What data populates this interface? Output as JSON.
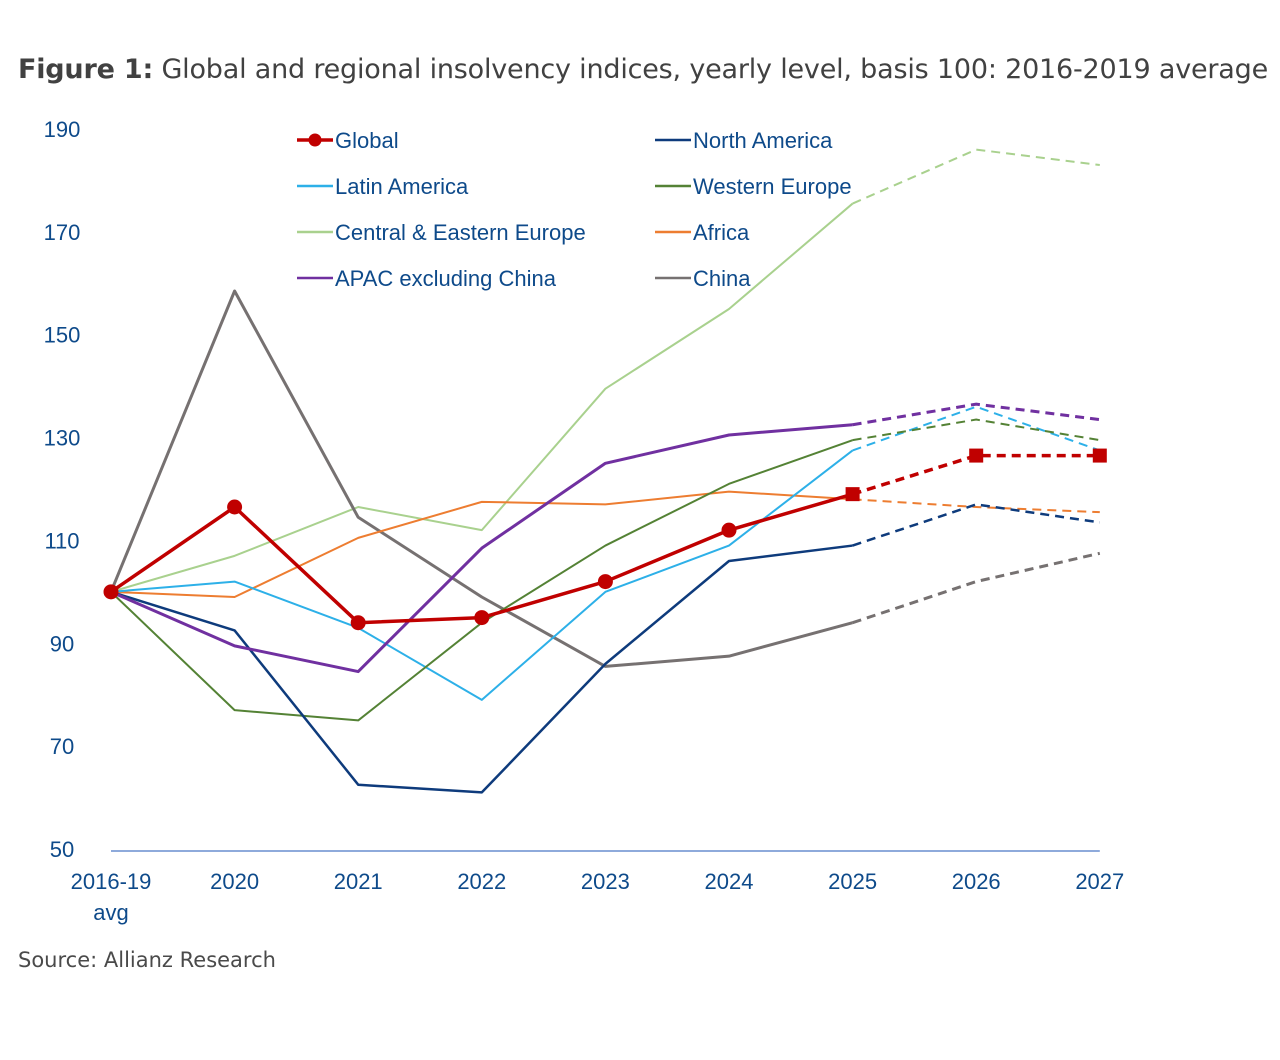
{
  "figure": {
    "label": "Figure 1:",
    "title": "Global and regional insolvency indices, yearly level, basis 100: 2016-2019 average",
    "source": "Source: Allianz Research"
  },
  "chart_data": {
    "type": "line",
    "title": "Global and regional insolvency indices, yearly level, basis 100: 2016-2019 average",
    "xlabel": "",
    "ylabel": "",
    "categories": [
      [
        "2016-19",
        "avg"
      ],
      [
        "2020"
      ],
      [
        "2021"
      ],
      [
        "2022"
      ],
      [
        "2023"
      ],
      [
        "2024"
      ],
      [
        "2025"
      ],
      [
        "2026"
      ],
      [
        "2027"
      ]
    ],
    "ylim": [
      50,
      190
    ],
    "yticks": [
      50,
      70,
      90,
      110,
      130,
      150,
      170,
      190
    ],
    "grid": false,
    "forecast_from_index": 6,
    "legend_position": "top",
    "series": [
      {
        "name": "Global",
        "color": "#c00000",
        "marker": "circle",
        "forecast_marker": "square",
        "width": 3.5,
        "values": [
          100,
          116.5,
          94,
          95,
          102,
          112,
          119,
          126.5,
          126.5
        ]
      },
      {
        "name": "North America",
        "color": "#0e3b7c",
        "width": 2.5,
        "values": [
          100,
          92.5,
          62.5,
          61,
          86,
          106,
          109,
          117,
          113.5
        ]
      },
      {
        "name": "Latin America",
        "color": "#2db0e8",
        "width": 2,
        "values": [
          100,
          102,
          93,
          79,
          100,
          109,
          127.5,
          136,
          127.5
        ]
      },
      {
        "name": "Western Europe",
        "color": "#548235",
        "width": 2,
        "values": [
          100,
          77,
          75,
          94,
          109,
          121,
          129.5,
          133.5,
          129.5
        ]
      },
      {
        "name": "Central & Eastern Europe",
        "color": "#a9d18e",
        "width": 2,
        "values": [
          100,
          107,
          116.5,
          112,
          139.5,
          155,
          175.5,
          186,
          183
        ]
      },
      {
        "name": "Africa",
        "color": "#ed7d31",
        "width": 2,
        "values": [
          100,
          99,
          110.5,
          117.5,
          117,
          119.5,
          118,
          116.5,
          115.5
        ]
      },
      {
        "name": "APAC excluding China",
        "color": "#7030a0",
        "width": 3,
        "values": [
          100,
          89.5,
          84.5,
          108.5,
          125,
          130.5,
          132.5,
          136.5,
          133.5
        ]
      },
      {
        "name": "China",
        "color": "#767171",
        "width": 3,
        "values": [
          100,
          158.5,
          114.5,
          99,
          85.5,
          87.5,
          94,
          102,
          107.5
        ]
      }
    ]
  }
}
